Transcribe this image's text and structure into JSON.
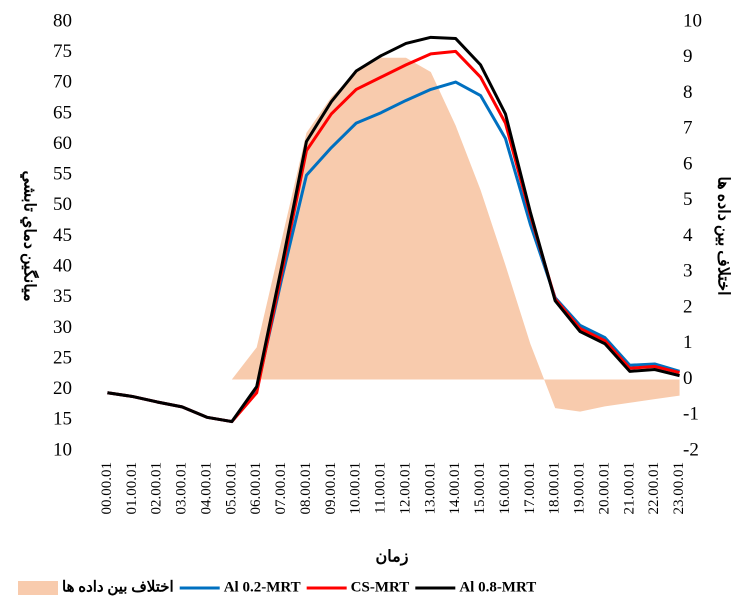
{
  "chart_data": {
    "type": "line",
    "x_label": "زمان",
    "y_label": "ميانگين دماي تابشي",
    "y2_label": "اختلاف بين داده ها",
    "categories": [
      "00.00.01",
      "01.00.01",
      "02.00.01",
      "03.00.01",
      "04.00.01",
      "05.00.01",
      "06.00.01",
      "07.00.01",
      "08.00.01",
      "09.00.01",
      "10.00.01",
      "11.00.01",
      "12.00.01",
      "13.00.01",
      "14.00.01",
      "15.00.01",
      "16.00.01",
      "17.00.01",
      "18.00.01",
      "19.00.01",
      "20.00.01",
      "21.00.01",
      "22.00.01",
      "23.00.01"
    ],
    "ylim": [
      10,
      80
    ],
    "yticks": [
      10,
      15,
      20,
      25,
      30,
      35,
      40,
      45,
      50,
      55,
      60,
      65,
      70,
      75,
      80
    ],
    "y2lim": [
      -2,
      10
    ],
    "y2ticks": [
      -2,
      -1,
      0,
      1,
      2,
      3,
      4,
      5,
      6,
      7,
      8,
      9,
      10
    ],
    "grid": false,
    "legend": "bottom",
    "series": [
      {
        "name": "اختلاف بين داده ها",
        "type": "area",
        "axis": "y2",
        "color": "#f8cbad",
        "values": [
          null,
          null,
          null,
          null,
          null,
          0,
          0.9,
          3.9,
          6.9,
          7.9,
          8.6,
          9.0,
          9.0,
          8.6,
          7.1,
          5.3,
          3.2,
          1.0,
          -0.8,
          -0.9,
          -0.75,
          -0.65,
          -0.55,
          -0.45
        ]
      },
      {
        "name": "Al 0.2-MRT",
        "type": "line",
        "color": "#0070c0",
        "values": [
          19.5,
          18.9,
          18,
          17.2,
          15.5,
          14.8,
          20,
          38,
          55,
          59.5,
          63.5,
          65.2,
          67.2,
          69,
          70.2,
          68,
          61,
          47,
          35,
          30.5,
          28.5,
          24,
          24.2,
          23
        ]
      },
      {
        "name": "CS-MRT",
        "type": "line",
        "color": "#ff0000",
        "values": [
          19.5,
          18.9,
          18,
          17.2,
          15.5,
          14.8,
          19.5,
          39,
          59,
          65,
          69,
          71,
          73,
          74.8,
          75.2,
          71,
          63.5,
          48.5,
          34.8,
          30,
          28,
          23.5,
          23.8,
          22.8
        ]
      },
      {
        "name": "Al 0.8-MRT",
        "type": "line",
        "color": "#000000",
        "values": [
          19.5,
          18.9,
          18,
          17.2,
          15.5,
          14.8,
          20.5,
          40,
          60.5,
          67,
          72,
          74.5,
          76.5,
          77.5,
          77.3,
          73,
          65,
          49,
          34.5,
          29.5,
          27.5,
          23,
          23.3,
          22.3
        ]
      }
    ]
  }
}
